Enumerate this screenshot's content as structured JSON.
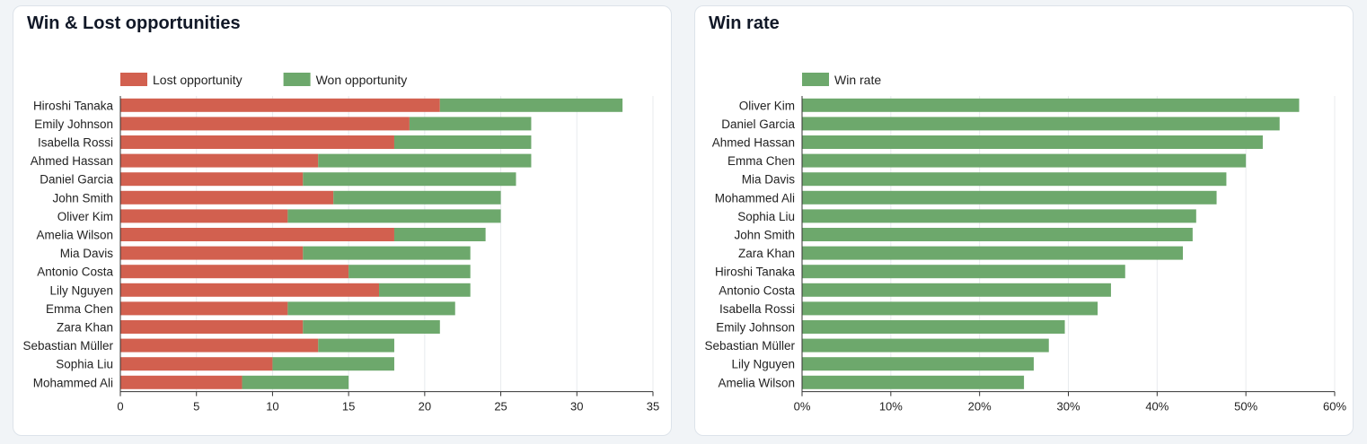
{
  "colors": {
    "lost": "#d2604f",
    "won": "#6da86c",
    "grid": "#e8ebee",
    "axis": "#333333",
    "text": "#222222"
  },
  "chart_data": [
    {
      "type": "bar",
      "orientation": "horizontal",
      "stacked": true,
      "title": "Win & Lost opportunities",
      "categories": [
        "Hiroshi Tanaka",
        "Emily Johnson",
        "Isabella Rossi",
        "Ahmed Hassan",
        "Daniel Garcia",
        "John Smith",
        "Oliver Kim",
        "Amelia Wilson",
        "Mia Davis",
        "Antonio Costa",
        "Lily Nguyen",
        "Emma Chen",
        "Zara Khan",
        "Sebastian Müller",
        "Sophia Liu",
        "Mohammed Ali"
      ],
      "series": [
        {
          "name": "Lost opportunity",
          "color_key": "lost",
          "values": [
            21,
            19,
            18,
            13,
            12,
            14,
            11,
            18,
            12,
            15,
            17,
            11,
            12,
            13,
            10,
            8
          ]
        },
        {
          "name": "Won opportunity",
          "color_key": "won",
          "values": [
            12,
            8,
            9,
            14,
            14,
            11,
            14,
            6,
            11,
            8,
            6,
            11,
            9,
            5,
            8,
            7
          ]
        }
      ],
      "xlim": [
        0,
        35
      ],
      "ticks": [
        0,
        5,
        10,
        15,
        20,
        25,
        30,
        35
      ],
      "tick_labels": [
        "0",
        "5",
        "10",
        "15",
        "20",
        "25",
        "30",
        "35"
      ],
      "grid": true,
      "legend": "top-left"
    },
    {
      "type": "bar",
      "orientation": "horizontal",
      "stacked": false,
      "title": "Win rate",
      "categories": [
        "Oliver Kim",
        "Daniel Garcia",
        "Ahmed Hassan",
        "Emma Chen",
        "Mia Davis",
        "Mohammed Ali",
        "Sophia Liu",
        "John Smith",
        "Zara Khan",
        "Hiroshi Tanaka",
        "Antonio Costa",
        "Isabella Rossi",
        "Emily Johnson",
        "Sebastian Müller",
        "Lily Nguyen",
        "Amelia Wilson"
      ],
      "series": [
        {
          "name": "Win rate",
          "color_key": "won",
          "values": [
            56,
            53.8,
            51.9,
            50,
            47.8,
            46.7,
            44.4,
            44,
            42.9,
            36.4,
            34.8,
            33.3,
            29.6,
            27.8,
            26.1,
            25
          ]
        }
      ],
      "xlim": [
        0,
        60
      ],
      "ticks": [
        0,
        10,
        20,
        30,
        40,
        50,
        60
      ],
      "tick_labels": [
        "0%",
        "10%",
        "20%",
        "30%",
        "40%",
        "50%",
        "60%"
      ],
      "grid": true,
      "legend": "top-left"
    }
  ]
}
